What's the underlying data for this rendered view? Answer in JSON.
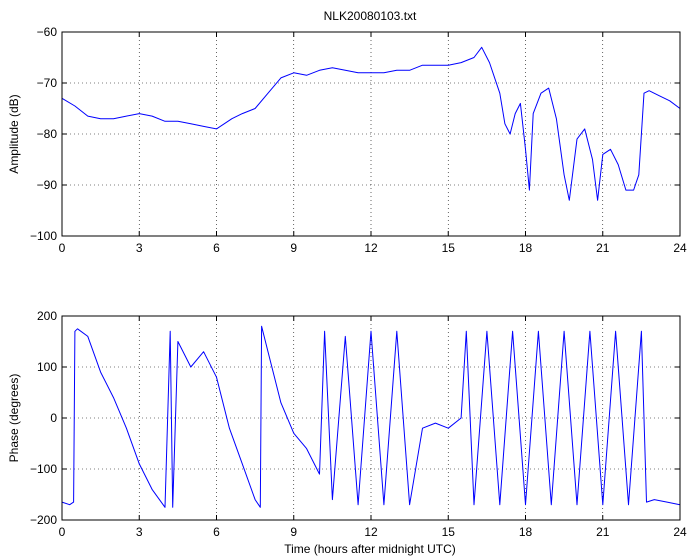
{
  "title": "NLK20080103.txt",
  "colors": {
    "line": "#0000ff",
    "axis": "#000000",
    "grid": "#000000",
    "background": "#ffffff"
  },
  "chart_data": [
    {
      "type": "line",
      "title": "NLK20080103.txt",
      "xlabel": "",
      "ylabel": "Amplitude (dB)",
      "xlim": [
        0,
        24
      ],
      "ylim": [
        -100,
        -60
      ],
      "xticks": [
        "0",
        "3",
        "6",
        "9",
        "12",
        "15",
        "18",
        "21",
        "24"
      ],
      "yticks": [
        "−100",
        "−90",
        "−80",
        "−70",
        "−60"
      ],
      "grid": "dotted",
      "series": [
        {
          "x": [
            0,
            0.5,
            1,
            1.5,
            2,
            2.5,
            3,
            3.5,
            4,
            4.5,
            5,
            5.5,
            6,
            6.3,
            6.6,
            7,
            7.5,
            8,
            8.5,
            9,
            9.5,
            10,
            10.5,
            11,
            11.5,
            12,
            12.5,
            13,
            13.5,
            14,
            14.5,
            15,
            15.5,
            16,
            16.3,
            16.6,
            17,
            17.2,
            17.4,
            17.6,
            17.8,
            18,
            18.15,
            18.3,
            18.6,
            18.9,
            19.2,
            19.5,
            19.7,
            20,
            20.3,
            20.6,
            20.8,
            21,
            21.3,
            21.6,
            21.9,
            22.2,
            22.4,
            22.6,
            22.8,
            23.2,
            23.6,
            24
          ],
          "values": [
            -73,
            -74.5,
            -76.5,
            -77,
            -77,
            -76.5,
            -76,
            -76.5,
            -77.5,
            -77.5,
            -78,
            -78.5,
            -79,
            -78,
            -77,
            -76,
            -75,
            -72,
            -69,
            -68,
            -68.5,
            -67.5,
            -67,
            -67.5,
            -68,
            -68,
            -68,
            -67.5,
            -67.5,
            -66.5,
            -66.5,
            -66.5,
            -66,
            -65,
            -63,
            -66,
            -72,
            -78,
            -80,
            -76,
            -74,
            -83,
            -91,
            -76,
            -72,
            -71,
            -77,
            -88,
            -93,
            -81,
            -79,
            -85,
            -93,
            -84,
            -83,
            -86,
            -91,
            -91,
            -88,
            -72,
            -71.5,
            -72.5,
            -73.5,
            -75
          ]
        }
      ]
    },
    {
      "type": "line",
      "title": "",
      "xlabel": "Time (hours after midnight UTC)",
      "ylabel": "Phase (degrees)",
      "xlim": [
        0,
        24
      ],
      "ylim": [
        -200,
        200
      ],
      "xticks": [
        "0",
        "3",
        "6",
        "9",
        "12",
        "15",
        "18",
        "21",
        "24"
      ],
      "yticks": [
        "−200",
        "−100",
        "0",
        "100",
        "200"
      ],
      "grid": "dotted",
      "series": [
        {
          "x": [
            0,
            0.3,
            0.45,
            0.5,
            0.6,
            1,
            1.5,
            2,
            2.5,
            3,
            3.5,
            4,
            4.2,
            4.3,
            4.5,
            5,
            5.5,
            6,
            6.5,
            7,
            7.5,
            7.7,
            7.75,
            8,
            8.5,
            9,
            9.5,
            10,
            10.2,
            10.5,
            11,
            11.5,
            12,
            12.5,
            13,
            13.5,
            14,
            14.5,
            15,
            15.5,
            15.7,
            16,
            16.5,
            17,
            17.5,
            18,
            18.5,
            19,
            19.5,
            20,
            20.5,
            21,
            21.5,
            22,
            22.5,
            22.7,
            23,
            23.5,
            24
          ],
          "values": [
            -165,
            -170,
            -165,
            170,
            175,
            160,
            90,
            40,
            -20,
            -90,
            -140,
            -175,
            170,
            -175,
            150,
            100,
            130,
            80,
            -20,
            -90,
            -160,
            -175,
            180,
            130,
            30,
            -30,
            -60,
            -110,
            170,
            -160,
            160,
            -170,
            170,
            -170,
            170,
            -170,
            -20,
            -10,
            -20,
            0,
            170,
            -170,
            170,
            -170,
            170,
            -170,
            170,
            -170,
            170,
            -170,
            170,
            -170,
            170,
            -170,
            170,
            -165,
            -160,
            -165,
            -170
          ]
        }
      ]
    }
  ]
}
